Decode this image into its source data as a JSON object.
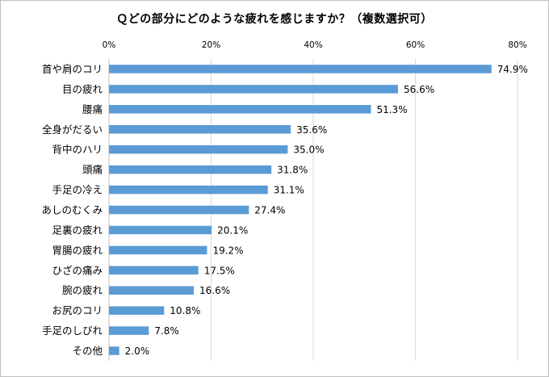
{
  "chart_data": {
    "type": "bar",
    "orientation": "horizontal",
    "title": "Ｑどの部分にどのような疲れを感じますか？（複数選択可）",
    "x_ticks": [
      "0%",
      "20%",
      "40%",
      "60%",
      "80%"
    ],
    "xlim": [
      0,
      80
    ],
    "x_unit": "%",
    "grid": true,
    "legend": "none",
    "bar_color": "#5b9bd5",
    "categories": [
      "首や肩のコリ",
      "目の疲れ",
      "腰痛",
      "全身がだるい",
      "背中のハリ",
      "頭痛",
      "手足の冷え",
      "あしのむくみ",
      "足裏の疲れ",
      "胃腸の疲れ",
      "ひざの痛み",
      "腕の疲れ",
      "お尻のコリ",
      "手足のしびれ",
      "その他"
    ],
    "values": [
      74.9,
      56.6,
      51.3,
      35.6,
      35.0,
      31.8,
      31.1,
      27.4,
      20.1,
      19.2,
      17.5,
      16.6,
      10.8,
      7.8,
      2.0
    ],
    "data_labels": [
      "74.9%",
      "56.6%",
      "51.3%",
      "35.6%",
      "35.0%",
      "31.8%",
      "31.1%",
      "27.4%",
      "20.1%",
      "19.2%",
      "17.5%",
      "16.6%",
      "10.8%",
      "7.8%",
      "2.0%"
    ]
  }
}
